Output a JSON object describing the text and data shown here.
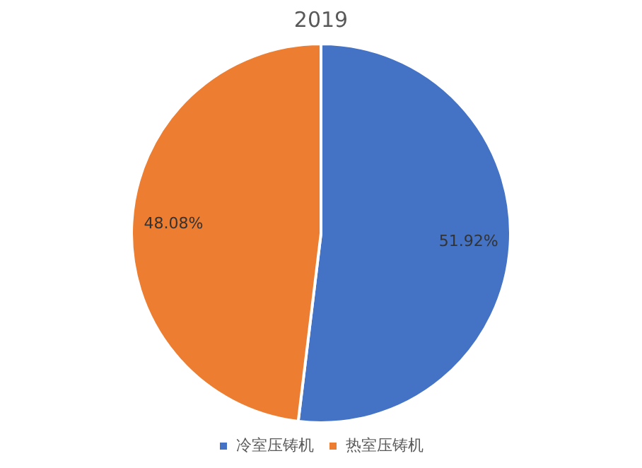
{
  "chart_data": {
    "type": "pie",
    "title": "2019",
    "categories": [
      "冷室压铸机",
      "热室压铸机"
    ],
    "values": [
      51.92,
      48.08
    ],
    "colors": [
      "#4472c4",
      "#ed7d31"
    ],
    "value_labels": [
      "51.92%",
      "48.08%"
    ],
    "legend": "bottom"
  }
}
